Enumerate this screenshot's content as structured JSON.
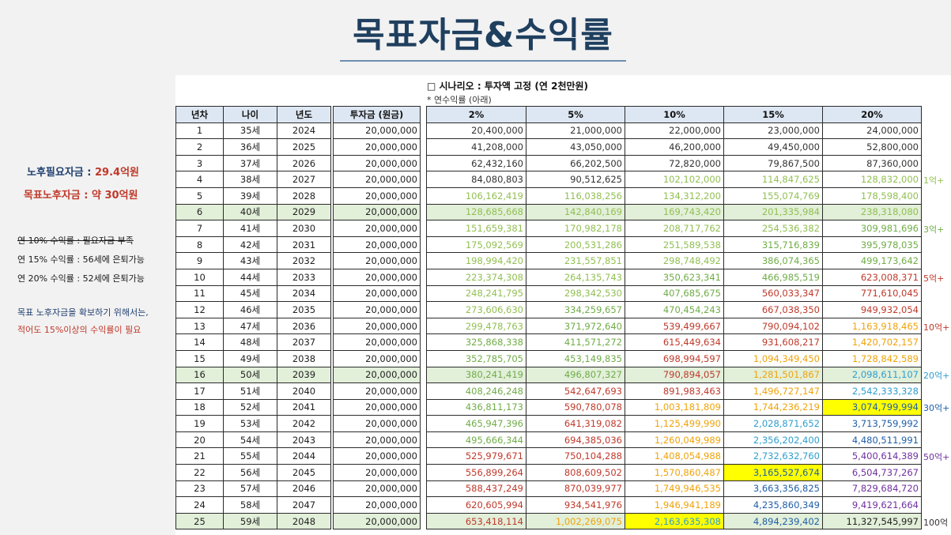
{
  "title": "목표자금&수익률",
  "left_notes": {
    "need_label": "노후필요자금 : ",
    "need_value": "29.4억원",
    "goal_label": "목표노후자금 : ",
    "goal_value": "약 30억원",
    "line1": "연 10% 수익률 : 필요자금 부족",
    "line2": "연 15% 수익률 : 56세에 은퇴가능",
    "line3": "연 20% 수익률 : 52세에 은퇴가능",
    "line4": "목표 노후자금을 확보하기 위해서는,",
    "line5": "적어도 15%이상의 수익률이 필요"
  },
  "scenario": {
    "title": "□ 시나리오 : 투자액 고정 (연 2천만원)",
    "subtitle": "* 연수익률 (아래)"
  },
  "table": {
    "headers": [
      "년차",
      "나이",
      "년도",
      "투자금 (원금)",
      "2%",
      "5%",
      "10%",
      "15%",
      "20%"
    ],
    "rows": [
      [
        "1",
        "35세",
        "2024",
        "20,000,000",
        "20,400,000",
        "21,000,000",
        "22,000,000",
        "23,000,000",
        "24,000,000"
      ],
      [
        "2",
        "36세",
        "2025",
        "20,000,000",
        "41,208,000",
        "43,050,000",
        "46,200,000",
        "49,450,000",
        "52,800,000"
      ],
      [
        "3",
        "37세",
        "2026",
        "20,000,000",
        "62,432,160",
        "66,202,500",
        "72,820,000",
        "79,867,500",
        "87,360,000"
      ],
      [
        "4",
        "38세",
        "2027",
        "20,000,000",
        "84,080,803",
        "90,512,625",
        "102,102,000",
        "114,847,625",
        "128,832,000"
      ],
      [
        "5",
        "39세",
        "2028",
        "20,000,000",
        "106,162,419",
        "116,038,256",
        "134,312,200",
        "155,074,769",
        "178,598,400"
      ],
      [
        "6",
        "40세",
        "2029",
        "20,000,000",
        "128,685,668",
        "142,840,169",
        "169,743,420",
        "201,335,984",
        "238,318,080"
      ],
      [
        "7",
        "41세",
        "2030",
        "20,000,000",
        "151,659,381",
        "170,982,178",
        "208,717,762",
        "254,536,382",
        "309,981,696"
      ],
      [
        "8",
        "42세",
        "2031",
        "20,000,000",
        "175,092,569",
        "200,531,286",
        "251,589,538",
        "315,716,839",
        "395,978,035"
      ],
      [
        "9",
        "43세",
        "2032",
        "20,000,000",
        "198,994,420",
        "231,557,851",
        "298,748,492",
        "386,074,365",
        "499,173,642"
      ],
      [
        "10",
        "44세",
        "2033",
        "20,000,000",
        "223,374,308",
        "264,135,743",
        "350,623,341",
        "466,985,519",
        "623,008,371"
      ],
      [
        "11",
        "45세",
        "2034",
        "20,000,000",
        "248,241,795",
        "298,342,530",
        "407,685,675",
        "560,033,347",
        "771,610,045"
      ],
      [
        "12",
        "46세",
        "2035",
        "20,000,000",
        "273,606,630",
        "334,259,657",
        "470,454,243",
        "667,038,350",
        "949,932,054"
      ],
      [
        "13",
        "47세",
        "2036",
        "20,000,000",
        "299,478,763",
        "371,972,640",
        "539,499,667",
        "790,094,102",
        "1,163,918,465"
      ],
      [
        "14",
        "48세",
        "2037",
        "20,000,000",
        "325,868,338",
        "411,571,272",
        "615,449,634",
        "931,608,217",
        "1,420,702,157"
      ],
      [
        "15",
        "49세",
        "2038",
        "20,000,000",
        "352,785,705",
        "453,149,835",
        "698,994,597",
        "1,094,349,450",
        "1,728,842,589"
      ],
      [
        "16",
        "50세",
        "2039",
        "20,000,000",
        "380,241,419",
        "496,807,327",
        "790,894,057",
        "1,281,501,867",
        "2,098,611,107"
      ],
      [
        "17",
        "51세",
        "2040",
        "20,000,000",
        "408,246,248",
        "542,647,693",
        "891,983,463",
        "1,496,727,147",
        "2,542,333,328"
      ],
      [
        "18",
        "52세",
        "2041",
        "20,000,000",
        "436,811,173",
        "590,780,078",
        "1,003,181,809",
        "1,744,236,219",
        "3,074,799,994"
      ],
      [
        "19",
        "53세",
        "2042",
        "20,000,000",
        "465,947,396",
        "641,319,082",
        "1,125,499,990",
        "2,028,871,652",
        "3,713,759,992"
      ],
      [
        "20",
        "54세",
        "2043",
        "20,000,000",
        "495,666,344",
        "694,385,036",
        "1,260,049,989",
        "2,356,202,400",
        "4,480,511,991"
      ],
      [
        "21",
        "55세",
        "2044",
        "20,000,000",
        "525,979,671",
        "750,104,288",
        "1,408,054,988",
        "2,732,632,760",
        "5,400,614,389"
      ],
      [
        "22",
        "56세",
        "2045",
        "20,000,000",
        "556,899,264",
        "808,609,502",
        "1,570,860,487",
        "3,165,527,674",
        "6,504,737,267"
      ],
      [
        "23",
        "57세",
        "2046",
        "20,000,000",
        "588,437,249",
        "870,039,977",
        "1,749,946,535",
        "3,663,356,825",
        "7,829,684,720"
      ],
      [
        "24",
        "58세",
        "2047",
        "20,000,000",
        "620,605,994",
        "934,541,976",
        "1,946,941,189",
        "4,235,860,349",
        "9,419,621,664"
      ],
      [
        "25",
        "59세",
        "2048",
        "20,000,000",
        "653,418,114",
        "1,002,269,075",
        "2,163,635,308",
        "4,894,239,402",
        "11,327,545,997"
      ]
    ]
  },
  "highlight_rows": [
    6,
    16,
    25
  ],
  "tier_colors": {
    "under_100m": "#333333",
    "100m_plus": "#92c052",
    "300m_plus": "#70ad47",
    "500m_plus": "#c0392b",
    "1b_plus": "#f0a30a",
    "2b_plus": "#2e9fcf",
    "3b_plus": "#1f5fa8",
    "5b_plus": "#7030a0",
    "10b_plus": "#222222"
  },
  "yellow_cells": [
    {
      "row": 18,
      "col": 8
    },
    {
      "row": 22,
      "col": 7
    },
    {
      "row": 25,
      "col": 6
    }
  ],
  "side_labels": [
    {
      "row": 4,
      "text": "1억+",
      "color": "#92c052"
    },
    {
      "row": 7,
      "text": "3억+",
      "color": "#70ad47"
    },
    {
      "row": 10,
      "text": "5억+",
      "color": "#c0392b"
    },
    {
      "row": 13,
      "text": "10억+",
      "color": "#c0392b"
    },
    {
      "row": 16,
      "text": "20억+",
      "color": "#2e9fcf"
    },
    {
      "row": 18,
      "text": "30억+",
      "color": "#1f5fa8"
    },
    {
      "row": 21,
      "text": "50억+",
      "color": "#7030a0"
    },
    {
      "row": 25,
      "text": "100억",
      "color": "#333333"
    }
  ]
}
